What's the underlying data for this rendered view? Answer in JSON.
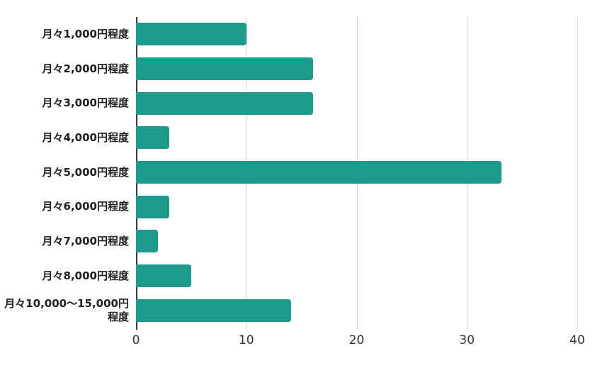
{
  "chart_data": {
    "type": "bar",
    "orientation": "horizontal",
    "title": "",
    "xlabel": "",
    "ylabel": "",
    "categories": [
      "月々1,000円程度",
      "月々2,000円程度",
      "月々3,000円程度",
      "月々4,000円程度",
      "月々5,000円程度",
      "月々6,000円程度",
      "月々7,000円程度",
      "月々8,000円程度",
      "月々10,000～15,000円程度"
    ],
    "values": [
      10,
      16,
      16,
      3,
      33,
      3,
      2,
      5,
      14
    ],
    "xlim": [
      0,
      40
    ],
    "xticks": [
      0,
      10,
      20,
      30,
      40
    ],
    "grid": "vertical-only",
    "legend": "none",
    "colors": {
      "bar": "#1e9a8c",
      "background": "#ffffff",
      "gridline": "#d9d9d9",
      "axis_line": "#3b3b3b",
      "category_label": "#1f1f1f",
      "tick_label": "#333333"
    }
  }
}
